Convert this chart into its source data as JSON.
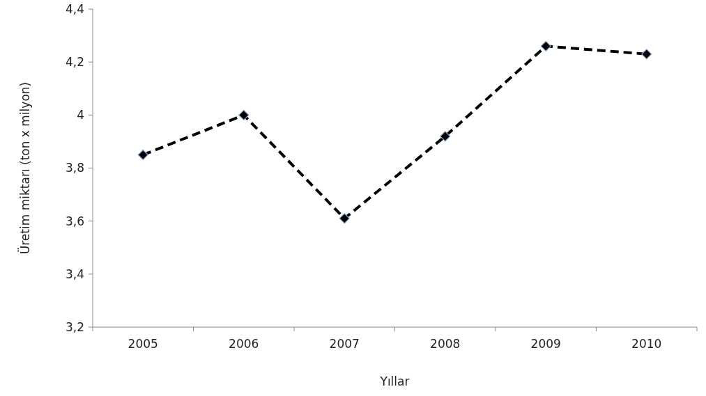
{
  "chart_data": {
    "type": "line",
    "xlabel": "Yıllar",
    "ylabel": "Üretim miktarı (ton x milyon)",
    "categories": [
      "2005",
      "2006",
      "2007",
      "2008",
      "2009",
      "2010"
    ],
    "series": [
      {
        "color": "#000000",
        "values": [
          3.85,
          4.0,
          3.61,
          3.92,
          4.26,
          4.23
        ]
      }
    ],
    "ylim": [
      3.2,
      4.4
    ],
    "yticks": [
      {
        "value": 3.2,
        "label": "3,2"
      },
      {
        "value": 3.4,
        "label": "3,4"
      },
      {
        "value": 3.6,
        "label": "3,6"
      },
      {
        "value": 3.8,
        "label": "3,8"
      },
      4,
      {
        "value": 4.2,
        "label": "4,2"
      },
      {
        "value": 4.4,
        "label": "4,4"
      }
    ],
    "grid": false,
    "marker": "diamond",
    "line_style": "dashed"
  }
}
